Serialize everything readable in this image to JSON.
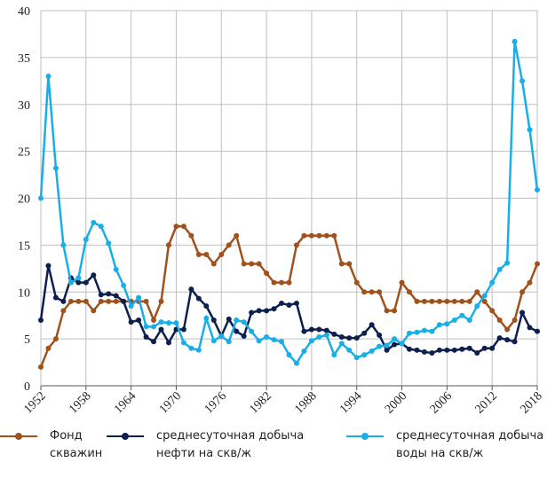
{
  "chart_data": {
    "type": "line",
    "x": [
      1952,
      1953,
      1954,
      1955,
      1956,
      1957,
      1958,
      1959,
      1960,
      1961,
      1962,
      1963,
      1964,
      1965,
      1966,
      1967,
      1968,
      1969,
      1970,
      1971,
      1972,
      1973,
      1974,
      1975,
      1976,
      1977,
      1978,
      1979,
      1980,
      1981,
      1982,
      1983,
      1984,
      1985,
      1986,
      1987,
      1988,
      1989,
      1990,
      1991,
      1992,
      1993,
      1994,
      1995,
      1996,
      1997,
      1998,
      1999,
      2000,
      2001,
      2002,
      2003,
      2004,
      2005,
      2006,
      2007,
      2008,
      2009,
      2010,
      2011,
      2012,
      2013,
      2014,
      2015,
      2016,
      2017,
      2018
    ],
    "series": [
      {
        "name": "Фонд скважин",
        "color": "#a0521d",
        "values": [
          2,
          4,
          5,
          8,
          9,
          9,
          9,
          8,
          9,
          9,
          9,
          9,
          9,
          9,
          9,
          7,
          9,
          15,
          17,
          17,
          16,
          14,
          14,
          13,
          14,
          15,
          16,
          13,
          13,
          13,
          12,
          11,
          11,
          11,
          15,
          16,
          16,
          16,
          16,
          16,
          13,
          13,
          11,
          10,
          10,
          10,
          8,
          8,
          11,
          10,
          9,
          9,
          9,
          9,
          9,
          9,
          9,
          9,
          10,
          9,
          8,
          7,
          6,
          7,
          10,
          11,
          13
        ]
      },
      {
        "name": "среднесуточная добыча нефти на скв/ж",
        "color": "#0d1f4f",
        "values": [
          7,
          12.8,
          9.4,
          9,
          11.5,
          11,
          11,
          11.8,
          9.7,
          9.8,
          9.6,
          9,
          6.8,
          7,
          5.2,
          4.7,
          6,
          4.6,
          6,
          6,
          10.3,
          9.3,
          8.5,
          7,
          5.3,
          7.1,
          5.8,
          5.3,
          7.8,
          8,
          8,
          8.2,
          8.8,
          8.6,
          8.8,
          5.8,
          6,
          6,
          5.9,
          5.5,
          5.2,
          5.1,
          5.1,
          5.6,
          6.5,
          5.4,
          3.8,
          4.4,
          4.5,
          3.9,
          3.8,
          3.6,
          3.5,
          3.8,
          3.8,
          3.8,
          3.9,
          4,
          3.5,
          4,
          4,
          5.1,
          4.9,
          4.7,
          7.8,
          6.2,
          5.8
        ]
      },
      {
        "name": "среднесуточная добыча воды на скв/ж",
        "color": "#1aaee8",
        "values": [
          20,
          33,
          23.2,
          15,
          11,
          11.5,
          15.6,
          17.4,
          17,
          15.2,
          12.4,
          10.7,
          8.5,
          9.4,
          6.3,
          6.3,
          6.8,
          6.7,
          6.7,
          4.6,
          4,
          3.8,
          7.2,
          4.8,
          5.3,
          4.7,
          7,
          6.8,
          5.8,
          4.8,
          5.2,
          4.9,
          4.7,
          3.3,
          2.4,
          3.7,
          4.8,
          5.2,
          5.4,
          3.3,
          4.5,
          3.8,
          3,
          3.3,
          3.7,
          4.2,
          4.3,
          5,
          4.5,
          5.6,
          5.7,
          5.9,
          5.8,
          6.5,
          6.6,
          7,
          7.5,
          7,
          8.5,
          9.6,
          11,
          12.4,
          13.1,
          36.7,
          32.5,
          27.3,
          20.9
        ]
      }
    ],
    "xlim": [
      1952,
      2018
    ],
    "xticks": [
      1952,
      1958,
      1964,
      1970,
      1976,
      1982,
      1988,
      1994,
      2000,
      2006,
      2012,
      2018
    ],
    "ylim": [
      0,
      40
    ],
    "yticks": [
      0,
      5,
      10,
      15,
      20,
      25,
      30,
      35,
      40
    ],
    "grid": true
  }
}
